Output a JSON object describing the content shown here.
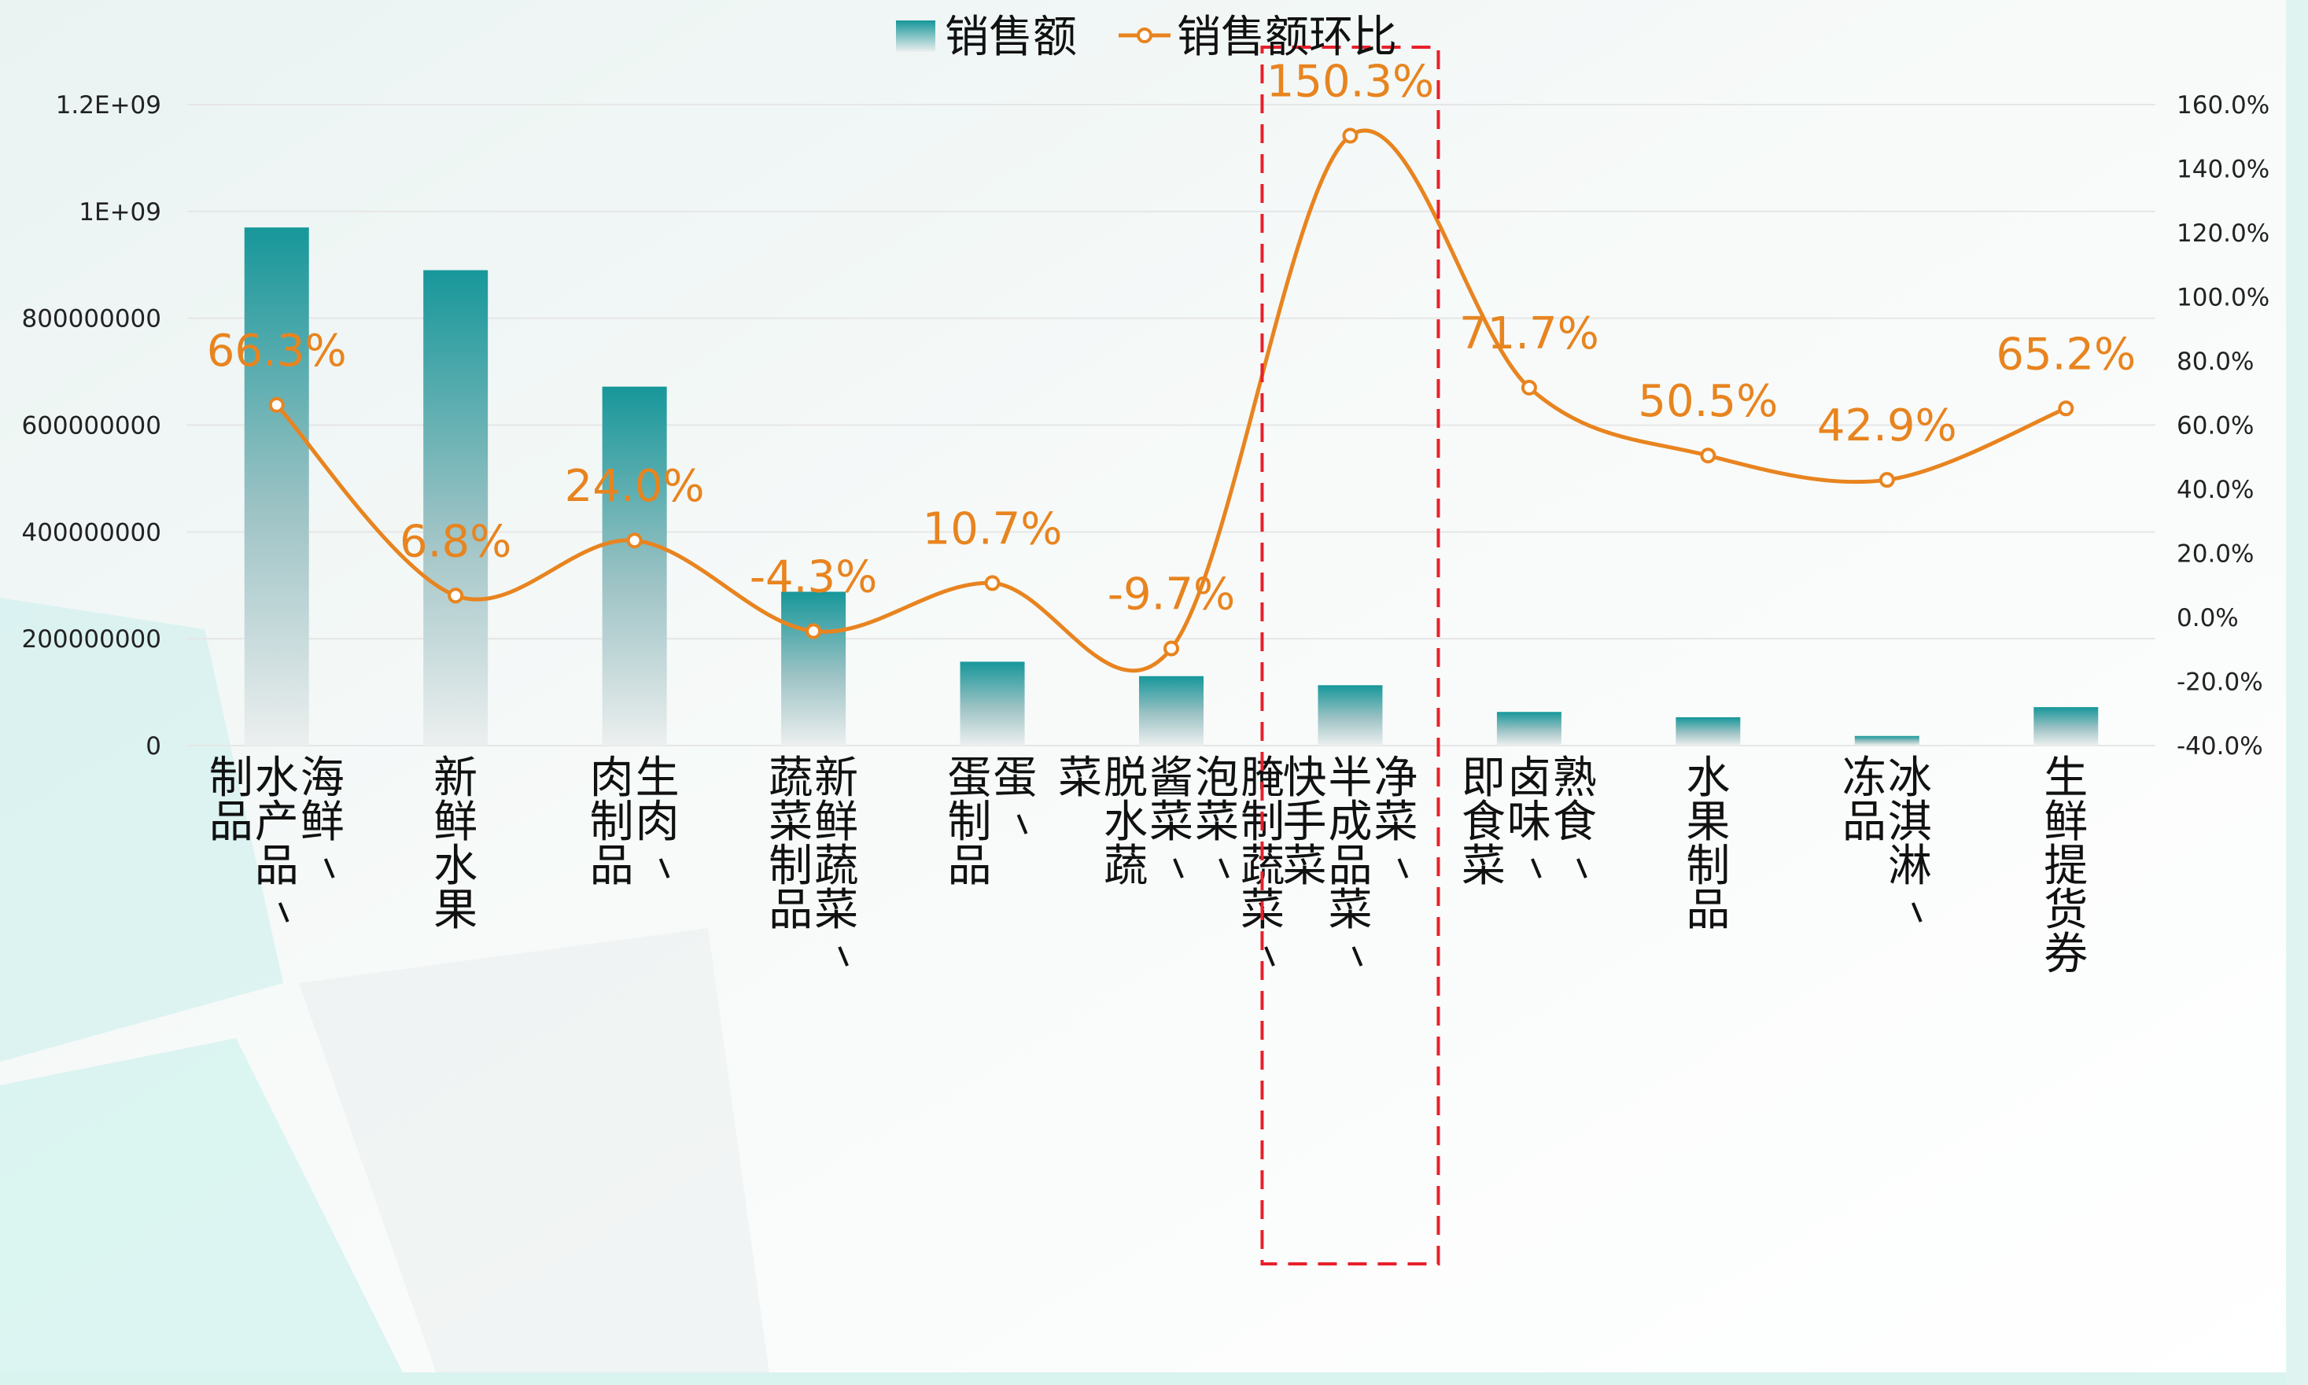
{
  "chart_data": {
    "type": "bar",
    "categories": [
      "海鲜/水产品/制品",
      "新鲜水果",
      "生肉/肉制品",
      "新鲜蔬菜/蔬菜制品",
      "蛋/蛋制品",
      "腌制蔬菜/泡菜/酱菜/脱水蔬菜",
      "净菜/半成品菜/快手菜",
      "熟食/卤味/即食菜",
      "水果制品",
      "冰淇淋/冻品",
      "生鲜提货券"
    ],
    "category_lines": [
      [
        "海鲜/",
        "水产品/",
        "制品"
      ],
      [
        "新鲜水果"
      ],
      [
        "生肉/",
        "肉制品"
      ],
      [
        "新鲜蔬菜/",
        "蔬菜制品"
      ],
      [
        "蛋/",
        "蛋制品"
      ],
      [
        "腌制蔬菜/",
        "泡菜/",
        "酱菜/",
        "脱水蔬",
        "菜"
      ],
      [
        "净菜/",
        "半成品菜/",
        "快手菜"
      ],
      [
        "熟食/",
        "卤味/",
        "即食菜"
      ],
      [
        "水果制品"
      ],
      [
        "冰淇淋/",
        "冻品"
      ],
      [
        "生鲜提货券"
      ]
    ],
    "series": [
      {
        "name": "销售额",
        "type": "bar",
        "axis": "left",
        "values": [
          970000000,
          890000000,
          672000000,
          288000000,
          157000000,
          130000000,
          113000000,
          63000000,
          53000000,
          18000000,
          72000000
        ]
      },
      {
        "name": "销售额环比",
        "type": "line",
        "axis": "right",
        "values": [
          66.3,
          6.8,
          24.0,
          -4.3,
          10.7,
          -9.7,
          150.3,
          71.7,
          50.5,
          42.9,
          65.2
        ],
        "labels": [
          "66.3%",
          "6.8%",
          "24.0%",
          "-4.3%",
          "10.7%",
          "-9.7%",
          "150.3%",
          "71.7%",
          "50.5%",
          "42.9%",
          "65.2%"
        ]
      }
    ],
    "y_left": {
      "ylim": [
        0,
        1200000000
      ],
      "ticks": [
        0,
        200000000,
        400000000,
        600000000,
        800000000,
        1000000000,
        1200000000
      ],
      "tick_labels": [
        "0",
        "200000000",
        "400000000",
        "600000000",
        "800000000",
        "1E+09",
        "1.2E+09"
      ]
    },
    "y_right": {
      "ylim": [
        -40,
        160
      ],
      "ticks": [
        -40,
        -20,
        0,
        20,
        40,
        60,
        80,
        100,
        120,
        140,
        160
      ],
      "tick_labels": [
        "-40.0%",
        "-20.0%",
        "0.0%",
        "20.0%",
        "40.0%",
        "60.0%",
        "80.0%",
        "100.0%",
        "120.0%",
        "140.0%",
        "160.0%"
      ]
    },
    "grid": true,
    "legend_position": "top-center",
    "highlight": {
      "category": "净菜/半成品菜/快手菜",
      "style": "red-dashed-box"
    },
    "colors": {
      "bar_top": "#17979A",
      "bar_bottom": "#ECEFEF",
      "line": "#E8841F",
      "highlight": "#E8202A",
      "grid": "#E6E6E6"
    }
  }
}
